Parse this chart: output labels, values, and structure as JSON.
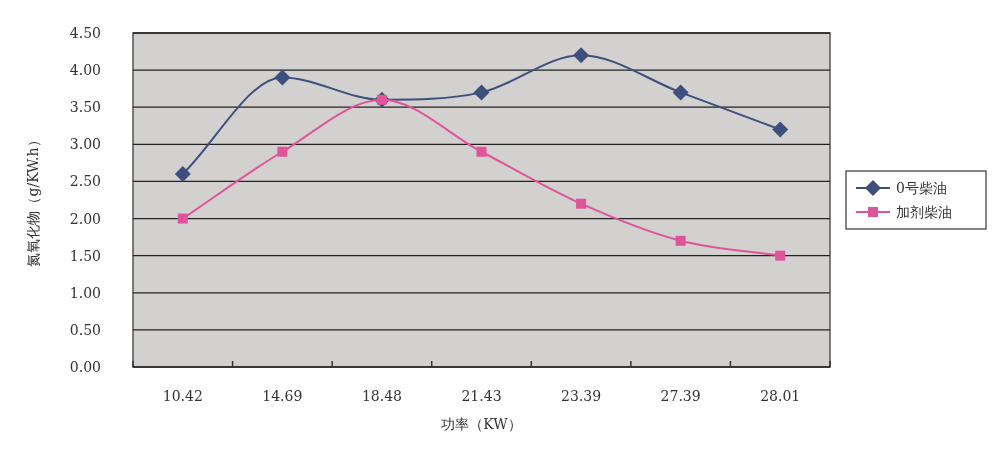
{
  "chart_data": {
    "type": "line",
    "xlabel": "功率（KW）",
    "ylabel": "氮氧化物（g/KW.h）",
    "categories": [
      "10.42",
      "14.69",
      "18.48",
      "21.43",
      "23.39",
      "27.39",
      "28.01"
    ],
    "ylim": [
      0,
      4.5
    ],
    "yticks": [
      {
        "value": 0,
        "label": "0.00"
      },
      {
        "value": 0.5,
        "label": "0.50"
      },
      {
        "value": 1,
        "label": "1.00"
      },
      {
        "value": 1.5,
        "label": "1.50"
      },
      {
        "value": 2,
        "label": "2.00"
      },
      {
        "value": 2.5,
        "label": "2.50"
      },
      {
        "value": 3,
        "label": "3.00"
      },
      {
        "value": 3.5,
        "label": "3.50"
      },
      {
        "value": 4,
        "label": "4.00"
      },
      {
        "value": 4.5,
        "label": "4.50"
      }
    ],
    "grid": "y",
    "legend": "right",
    "series": [
      {
        "name": "0号柴油",
        "color": "#3d4f7c",
        "marker": "diamond",
        "values": [
          2.6,
          3.9,
          3.6,
          3.7,
          4.2,
          3.7,
          3.2
        ]
      },
      {
        "name": "加剂柴油",
        "color": "#e0559a",
        "marker": "square",
        "values": [
          2.0,
          2.9,
          3.6,
          2.9,
          2.2,
          1.7,
          1.5
        ]
      }
    ]
  }
}
